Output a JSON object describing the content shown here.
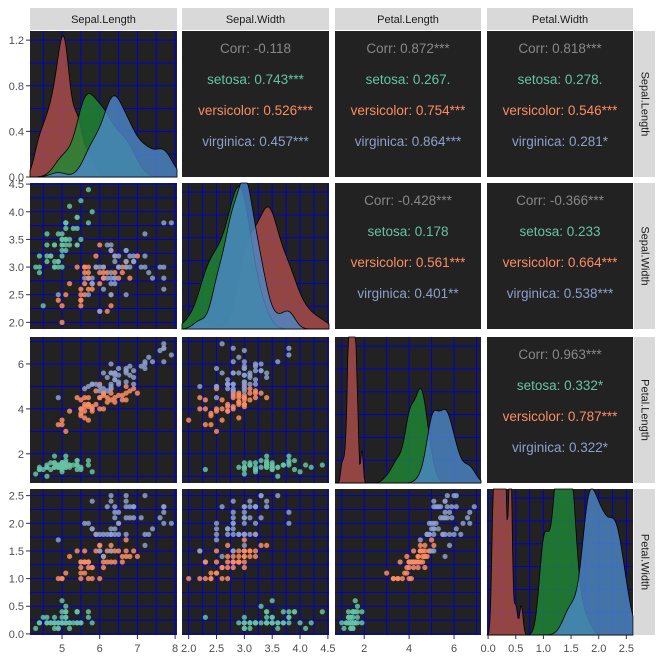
{
  "chart_data": {
    "type": "scatter",
    "variables": [
      "Sepal.Length",
      "Sepal.Width",
      "Petal.Length",
      "Petal.Width"
    ],
    "colors": {
      "panel_background": "#222222",
      "grid": "#0000cc",
      "strip": "#d9d9d9",
      "setosa": "#66c2a5",
      "versicolor": "#fc8d62",
      "virginica": "#8da0cb",
      "corr_overall": "#888888",
      "density_setosa": "#b0504a",
      "density_versicolor": "#1f8a35",
      "density_virginica": "#4c88c9"
    },
    "axes": {
      "Sepal.Length": {
        "range": [
          4.15,
          8.05
        ],
        "ticks": [
          5,
          6,
          7,
          8
        ],
        "tick_labels": [
          "5",
          "6",
          "7",
          "8"
        ]
      },
      "Sepal.Width": {
        "range": [
          1.88,
          4.52
        ],
        "ticks": [
          2.0,
          2.5,
          3.0,
          3.5,
          4.0,
          4.5
        ],
        "tick_labels": [
          "2.0",
          "2.5",
          "3.0",
          "3.5",
          "4.0",
          "4.5"
        ]
      },
      "Petal.Length": {
        "range": [
          0.7,
          7.2
        ],
        "ticks": [
          2,
          4,
          6
        ],
        "tick_labels": [
          "2",
          "4",
          "6"
        ]
      },
      "Petal.Width": {
        "range": [
          -0.02,
          2.62
        ],
        "ticks": [
          0.0,
          0.5,
          1.0,
          1.5,
          2.0,
          2.5
        ],
        "tick_labels": [
          "0.0",
          "0.5",
          "1.0",
          "1.5",
          "2.0",
          "2.5"
        ]
      },
      "density_y": {
        "range": [
          0,
          1.28
        ],
        "ticks": [
          0.0,
          0.4,
          0.8,
          1.2
        ],
        "tick_labels": [
          "0.0",
          "0.4",
          "0.8",
          "1.2"
        ]
      }
    },
    "correlations": [
      {
        "row": 0,
        "col": 1,
        "lines": [
          [
            "Corr: -0.118",
            "overall"
          ],
          [
            "setosa: 0.743***",
            "setosa"
          ],
          [
            "versicolor: 0.526***",
            "versicolor"
          ],
          [
            "virginica: 0.457***",
            "virginica"
          ]
        ]
      },
      {
        "row": 0,
        "col": 2,
        "lines": [
          [
            "Corr: 0.872***",
            "overall"
          ],
          [
            "setosa: 0.267.",
            "setosa"
          ],
          [
            "versicolor: 0.754***",
            "versicolor"
          ],
          [
            "virginica: 0.864***",
            "virginica"
          ]
        ]
      },
      {
        "row": 0,
        "col": 3,
        "lines": [
          [
            "Corr: 0.818***",
            "overall"
          ],
          [
            "setosa: 0.278.",
            "setosa"
          ],
          [
            "versicolor: 0.546***",
            "versicolor"
          ],
          [
            "virginica: 0.281*",
            "virginica"
          ]
        ]
      },
      {
        "row": 1,
        "col": 2,
        "lines": [
          [
            "Corr: -0.428***",
            "overall"
          ],
          [
            "setosa: 0.178",
            "setosa"
          ],
          [
            "versicolor: 0.561***",
            "versicolor"
          ],
          [
            "virginica: 0.401**",
            "virginica"
          ]
        ]
      },
      {
        "row": 1,
        "col": 3,
        "lines": [
          [
            "Corr: -0.366***",
            "overall"
          ],
          [
            "setosa: 0.233",
            "setosa"
          ],
          [
            "versicolor: 0.664***",
            "versicolor"
          ],
          [
            "virginica: 0.538***",
            "virginica"
          ]
        ]
      },
      {
        "row": 2,
        "col": 3,
        "lines": [
          [
            "Corr: 0.963***",
            "overall"
          ],
          [
            "setosa: 0.332*",
            "setosa"
          ],
          [
            "versicolor: 0.787***",
            "versicolor"
          ],
          [
            "virginica: 0.322*",
            "virginica"
          ]
        ]
      }
    ],
    "species": [
      "setosa",
      "versicolor",
      "virginica"
    ],
    "iris": {
      "setosa": [
        [
          5.1,
          3.5,
          1.4,
          0.2
        ],
        [
          4.9,
          3.0,
          1.4,
          0.2
        ],
        [
          4.7,
          3.2,
          1.3,
          0.2
        ],
        [
          4.6,
          3.1,
          1.5,
          0.2
        ],
        [
          5.0,
          3.6,
          1.4,
          0.2
        ],
        [
          5.4,
          3.9,
          1.7,
          0.4
        ],
        [
          4.6,
          3.4,
          1.4,
          0.3
        ],
        [
          5.0,
          3.4,
          1.5,
          0.2
        ],
        [
          4.4,
          2.9,
          1.4,
          0.2
        ],
        [
          4.9,
          3.1,
          1.5,
          0.1
        ],
        [
          5.4,
          3.7,
          1.5,
          0.2
        ],
        [
          4.8,
          3.4,
          1.6,
          0.2
        ],
        [
          4.8,
          3.0,
          1.4,
          0.1
        ],
        [
          4.3,
          3.0,
          1.1,
          0.1
        ],
        [
          5.8,
          4.0,
          1.2,
          0.2
        ],
        [
          5.7,
          4.4,
          1.5,
          0.4
        ],
        [
          5.4,
          3.9,
          1.3,
          0.4
        ],
        [
          5.1,
          3.5,
          1.4,
          0.3
        ],
        [
          5.7,
          3.8,
          1.7,
          0.3
        ],
        [
          5.1,
          3.8,
          1.5,
          0.3
        ],
        [
          5.4,
          3.4,
          1.7,
          0.2
        ],
        [
          5.1,
          3.7,
          1.5,
          0.4
        ],
        [
          4.6,
          3.6,
          1.0,
          0.2
        ],
        [
          5.1,
          3.3,
          1.7,
          0.5
        ],
        [
          4.8,
          3.4,
          1.9,
          0.2
        ],
        [
          5.0,
          3.0,
          1.6,
          0.2
        ],
        [
          5.0,
          3.4,
          1.6,
          0.4
        ],
        [
          5.2,
          3.5,
          1.5,
          0.2
        ],
        [
          5.2,
          3.4,
          1.4,
          0.2
        ],
        [
          4.7,
          3.2,
          1.6,
          0.2
        ],
        [
          4.8,
          3.1,
          1.6,
          0.2
        ],
        [
          5.4,
          3.4,
          1.5,
          0.4
        ],
        [
          5.2,
          4.1,
          1.5,
          0.1
        ],
        [
          5.5,
          4.2,
          1.4,
          0.2
        ],
        [
          4.9,
          3.1,
          1.5,
          0.2
        ],
        [
          5.0,
          3.2,
          1.2,
          0.2
        ],
        [
          5.5,
          3.5,
          1.3,
          0.2
        ],
        [
          4.9,
          3.6,
          1.4,
          0.1
        ],
        [
          4.4,
          3.0,
          1.3,
          0.2
        ],
        [
          5.1,
          3.4,
          1.5,
          0.2
        ],
        [
          5.0,
          3.5,
          1.3,
          0.3
        ],
        [
          4.5,
          2.3,
          1.3,
          0.3
        ],
        [
          4.4,
          3.2,
          1.3,
          0.2
        ],
        [
          5.0,
          3.5,
          1.6,
          0.6
        ],
        [
          5.1,
          3.8,
          1.9,
          0.4
        ],
        [
          4.8,
          3.0,
          1.4,
          0.3
        ],
        [
          5.1,
          3.8,
          1.6,
          0.2
        ],
        [
          4.6,
          3.2,
          1.4,
          0.2
        ],
        [
          5.3,
          3.7,
          1.5,
          0.2
        ],
        [
          5.0,
          3.3,
          1.4,
          0.2
        ]
      ],
      "versicolor": [
        [
          7.0,
          3.2,
          4.7,
          1.4
        ],
        [
          6.4,
          3.2,
          4.5,
          1.5
        ],
        [
          6.9,
          3.1,
          4.9,
          1.5
        ],
        [
          5.5,
          2.3,
          4.0,
          1.3
        ],
        [
          6.5,
          2.8,
          4.6,
          1.5
        ],
        [
          5.7,
          2.8,
          4.5,
          1.3
        ],
        [
          6.3,
          3.3,
          4.7,
          1.6
        ],
        [
          4.9,
          2.4,
          3.3,
          1.0
        ],
        [
          6.6,
          2.9,
          4.6,
          1.3
        ],
        [
          5.2,
          2.7,
          3.9,
          1.4
        ],
        [
          5.0,
          2.0,
          3.5,
          1.0
        ],
        [
          5.9,
          3.0,
          4.2,
          1.5
        ],
        [
          6.0,
          2.2,
          4.0,
          1.0
        ],
        [
          6.1,
          2.9,
          4.7,
          1.4
        ],
        [
          5.6,
          2.9,
          3.6,
          1.3
        ],
        [
          6.7,
          3.1,
          4.4,
          1.4
        ],
        [
          5.6,
          3.0,
          4.5,
          1.5
        ],
        [
          5.8,
          2.7,
          4.1,
          1.0
        ],
        [
          6.2,
          2.2,
          4.5,
          1.5
        ],
        [
          5.6,
          2.5,
          3.9,
          1.1
        ],
        [
          5.9,
          3.2,
          4.8,
          1.8
        ],
        [
          6.1,
          2.8,
          4.0,
          1.3
        ],
        [
          6.3,
          2.5,
          4.9,
          1.5
        ],
        [
          6.1,
          2.8,
          4.7,
          1.2
        ],
        [
          6.4,
          2.9,
          4.3,
          1.3
        ],
        [
          6.6,
          3.0,
          4.4,
          1.4
        ],
        [
          6.8,
          2.8,
          4.8,
          1.4
        ],
        [
          6.7,
          3.0,
          5.0,
          1.7
        ],
        [
          6.0,
          2.9,
          4.5,
          1.5
        ],
        [
          5.7,
          2.6,
          3.5,
          1.0
        ],
        [
          5.5,
          2.4,
          3.8,
          1.1
        ],
        [
          5.5,
          2.4,
          3.7,
          1.0
        ],
        [
          5.8,
          2.7,
          3.9,
          1.2
        ],
        [
          6.0,
          2.7,
          5.1,
          1.6
        ],
        [
          5.4,
          3.0,
          4.5,
          1.5
        ],
        [
          6.0,
          3.4,
          4.5,
          1.6
        ],
        [
          6.7,
          3.1,
          4.7,
          1.5
        ],
        [
          6.3,
          2.3,
          4.4,
          1.3
        ],
        [
          5.6,
          3.0,
          4.1,
          1.3
        ],
        [
          5.5,
          2.5,
          4.0,
          1.3
        ],
        [
          5.5,
          2.6,
          4.4,
          1.2
        ],
        [
          6.1,
          3.0,
          4.6,
          1.4
        ],
        [
          5.8,
          2.6,
          4.0,
          1.2
        ],
        [
          5.0,
          2.3,
          3.3,
          1.0
        ],
        [
          5.6,
          2.7,
          4.2,
          1.3
        ],
        [
          5.7,
          3.0,
          4.2,
          1.2
        ],
        [
          5.7,
          2.9,
          4.2,
          1.3
        ],
        [
          6.2,
          2.9,
          4.3,
          1.3
        ],
        [
          5.1,
          2.5,
          3.0,
          1.1
        ],
        [
          5.7,
          2.8,
          4.1,
          1.3
        ]
      ],
      "virginica": [
        [
          6.3,
          3.3,
          6.0,
          2.5
        ],
        [
          5.8,
          2.7,
          5.1,
          1.9
        ],
        [
          7.1,
          3.0,
          5.9,
          2.1
        ],
        [
          6.3,
          2.9,
          5.6,
          1.8
        ],
        [
          6.5,
          3.0,
          5.8,
          2.2
        ],
        [
          7.6,
          3.0,
          6.6,
          2.1
        ],
        [
          4.9,
          2.5,
          4.5,
          1.7
        ],
        [
          7.3,
          2.9,
          6.3,
          1.8
        ],
        [
          6.7,
          2.5,
          5.8,
          1.8
        ],
        [
          7.2,
          3.6,
          6.1,
          2.5
        ],
        [
          6.5,
          3.2,
          5.1,
          2.0
        ],
        [
          6.4,
          2.7,
          5.3,
          1.9
        ],
        [
          6.8,
          3.0,
          5.5,
          2.1
        ],
        [
          5.7,
          2.5,
          5.0,
          2.0
        ],
        [
          5.8,
          2.8,
          5.1,
          2.4
        ],
        [
          6.4,
          3.2,
          5.3,
          2.3
        ],
        [
          6.5,
          3.0,
          5.5,
          1.8
        ],
        [
          7.7,
          3.8,
          6.7,
          2.2
        ],
        [
          7.7,
          2.6,
          6.9,
          2.3
        ],
        [
          6.0,
          2.2,
          5.0,
          1.5
        ],
        [
          6.9,
          3.2,
          5.7,
          2.3
        ],
        [
          5.6,
          2.8,
          4.9,
          2.0
        ],
        [
          7.7,
          2.8,
          6.7,
          2.0
        ],
        [
          6.3,
          2.7,
          4.9,
          1.8
        ],
        [
          6.7,
          3.3,
          5.7,
          2.1
        ],
        [
          7.2,
          3.2,
          6.0,
          1.8
        ],
        [
          6.2,
          2.8,
          4.8,
          1.8
        ],
        [
          6.1,
          3.0,
          4.9,
          1.8
        ],
        [
          6.4,
          2.8,
          5.6,
          2.1
        ],
        [
          7.2,
          3.0,
          5.8,
          1.6
        ],
        [
          7.4,
          2.8,
          6.1,
          1.9
        ],
        [
          7.9,
          3.8,
          6.4,
          2.0
        ],
        [
          6.4,
          2.8,
          5.6,
          2.2
        ],
        [
          6.3,
          2.8,
          5.1,
          1.5
        ],
        [
          6.1,
          2.6,
          5.6,
          1.4
        ],
        [
          7.7,
          3.0,
          6.1,
          2.3
        ],
        [
          6.3,
          3.4,
          5.6,
          2.4
        ],
        [
          6.4,
          3.1,
          5.5,
          1.8
        ],
        [
          6.0,
          3.0,
          4.8,
          1.8
        ],
        [
          6.9,
          3.1,
          5.4,
          2.1
        ],
        [
          6.7,
          3.1,
          5.6,
          2.4
        ],
        [
          6.9,
          3.1,
          5.1,
          2.3
        ],
        [
          5.8,
          2.7,
          5.1,
          1.9
        ],
        [
          6.8,
          3.2,
          5.9,
          2.3
        ],
        [
          6.7,
          3.3,
          5.7,
          2.5
        ],
        [
          6.7,
          3.0,
          5.2,
          2.3
        ],
        [
          6.3,
          2.5,
          5.0,
          1.9
        ],
        [
          6.5,
          3.0,
          5.2,
          2.0
        ],
        [
          6.2,
          3.4,
          5.4,
          2.3
        ],
        [
          5.9,
          3.0,
          5.1,
          1.8
        ]
      ]
    }
  }
}
